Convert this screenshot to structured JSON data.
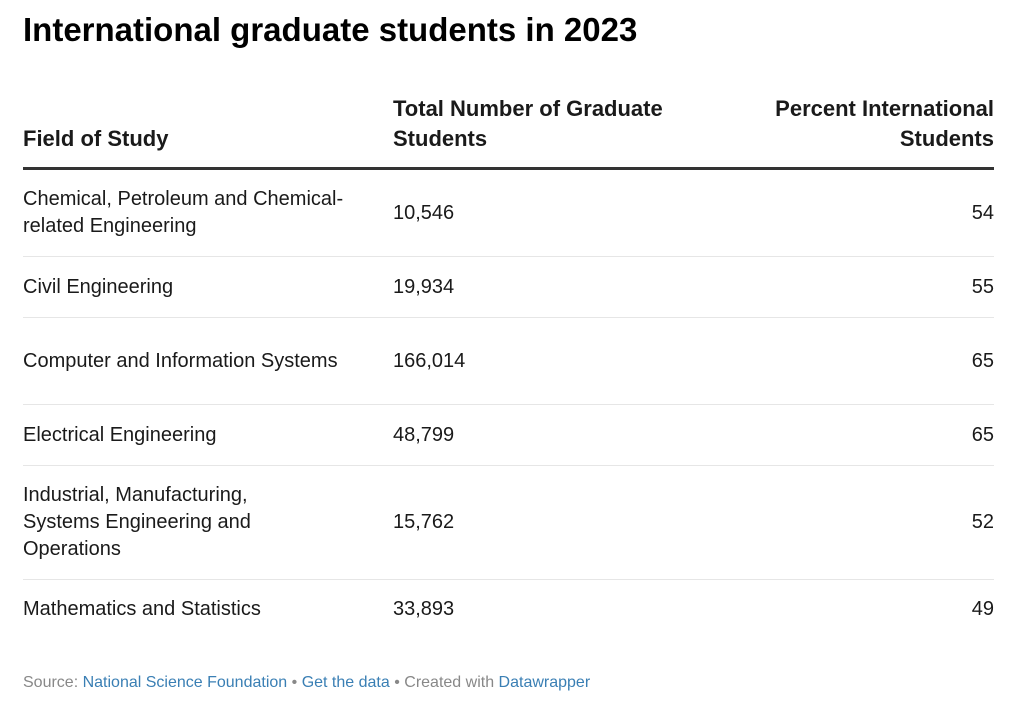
{
  "chart_data": {
    "type": "table",
    "title": "International graduate students in 2023",
    "columns": [
      "Field of Study",
      "Total Number of Graduate Students",
      "Percent International Students"
    ],
    "rows": [
      {
        "field": "Chemical, Petroleum and Chemical-related Engineering",
        "total": "10,546",
        "percent": "54"
      },
      {
        "field": "Civil Engineering",
        "total": "19,934",
        "percent": "55"
      },
      {
        "field": "Computer and Information Systems",
        "total": "166,014",
        "percent": "65"
      },
      {
        "field": "Electrical Engineering",
        "total": "48,799",
        "percent": "65"
      },
      {
        "field": "Industrial, Manufacturing, Systems Engineering and Operations",
        "total": "15,762",
        "percent": "52"
      },
      {
        "field": "Mathematics and Statistics",
        "total": "33,893",
        "percent": "49"
      }
    ]
  },
  "footer": {
    "source_label": "Source:",
    "source_link": "National Science Foundation",
    "separator": "•",
    "get_data": "Get the data",
    "created_with": "Created with",
    "datawrapper": "Datawrapper"
  },
  "colors": {
    "link": "#3a7fb4",
    "header_rule": "#333333",
    "row_rule": "#e6e6e6",
    "footer_text": "#888888"
  }
}
